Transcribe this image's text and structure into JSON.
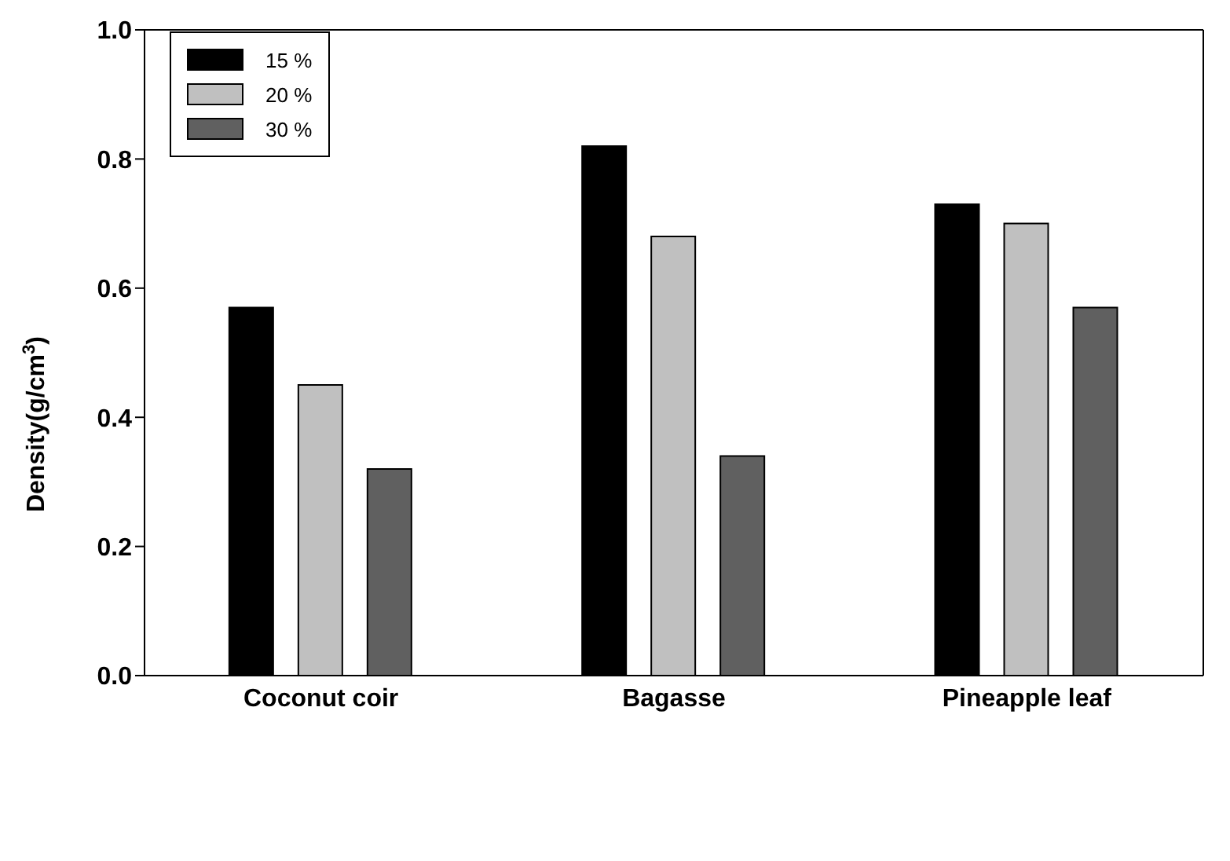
{
  "chart_data": {
    "type": "bar",
    "ylabel": "Density(g/cm$^{3}$)",
    "categories": [
      "Coconut coir",
      "Bagasse",
      "Pineapple leaf"
    ],
    "series": [
      {
        "name": "15 %",
        "color": "#000000",
        "values": [
          0.57,
          0.82,
          0.73
        ]
      },
      {
        "name": "20 %",
        "color": "#c0c0c0",
        "values": [
          0.45,
          0.68,
          0.7
        ]
      },
      {
        "name": "30 %",
        "color": "#606060",
        "values": [
          0.32,
          0.34,
          0.57
        ]
      }
    ],
    "ylim": [
      0,
      1
    ],
    "yticks": [
      {
        "value": 0,
        "label": "0.0"
      },
      {
        "value": 0.2,
        "label": "0.2"
      },
      {
        "value": 0.4,
        "label": "0.4"
      },
      {
        "value": 0.6,
        "label": "0.6"
      },
      {
        "value": 0.8,
        "label": "0.8"
      },
      {
        "value": 1,
        "label": "1.0"
      }
    ],
    "grid": false,
    "legend": "top left"
  }
}
